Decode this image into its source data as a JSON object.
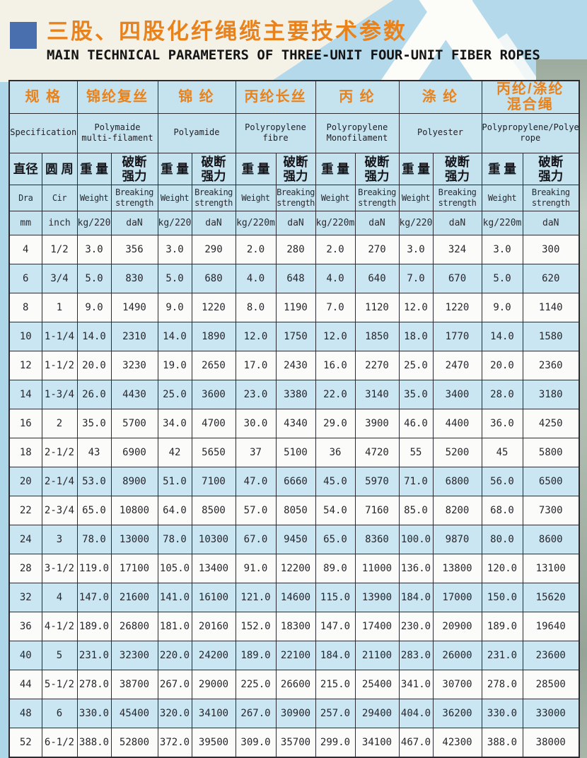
{
  "page": {
    "title_zh": "三股、四股化纤绳缆主要技术参数",
    "title_en": "MAIN TECHNICAL PARAMETERS OF THREE-UNIT FOUR-UNIT FIBER ROPES"
  },
  "colors": {
    "accent_orange": "#e8821c",
    "border_orange": "#e0762a",
    "border_dark": "#2b2b33",
    "header_cell_bg": "#c5e3ef",
    "shaded_row_bg": "#c9e6f2",
    "title_marker_blue": "#4a6fae",
    "page_background_blue": "#aed6e9"
  },
  "table": {
    "groups": [
      {
        "zh": "规 格",
        "en": "Specification"
      },
      {
        "zh": "锦纶复丝",
        "en": "Polymaide multi-filament"
      },
      {
        "zh": "锦 纶",
        "en": "Polyamide"
      },
      {
        "zh": "丙纶长丝",
        "en": "Polyropylene fibre"
      },
      {
        "zh": "丙 纶",
        "en": "Polyropylene Monofilament"
      },
      {
        "zh": "涤 纶",
        "en": "Polyester"
      },
      {
        "zh": "丙纶/涤纶混合绳",
        "en": "Polypropylene/Polyester/Mixed rope"
      }
    ],
    "sub": {
      "dia_zh": "直径",
      "cir_zh": "圆 周",
      "weight_zh": "重 量",
      "strength_zh": "破断强力",
      "dia_en": "Dra",
      "cir_en": "Cir",
      "weight_en": "Weight",
      "strength_en": "Breaking strength",
      "dia_unit": "mm",
      "cir_unit": "inch",
      "weight_unit": "kg/220m",
      "strength_unit": "daN"
    },
    "rows": [
      {
        "shaded": false,
        "cells": [
          "4",
          "1/2",
          "3.0",
          "356",
          "3.0",
          "290",
          "2.0",
          "280",
          "2.0",
          "270",
          "3.0",
          "324",
          "3.0",
          "300"
        ]
      },
      {
        "shaded": true,
        "cells": [
          "6",
          "3/4",
          "5.0",
          "830",
          "5.0",
          "680",
          "4.0",
          "648",
          "4.0",
          "640",
          "7.0",
          "670",
          "5.0",
          "620"
        ]
      },
      {
        "shaded": false,
        "cells": [
          "8",
          "1",
          "9.0",
          "1490",
          "9.0",
          "1220",
          "8.0",
          "1190",
          "7.0",
          "1120",
          "12.0",
          "1220",
          "9.0",
          "1140"
        ]
      },
      {
        "shaded": true,
        "cells": [
          "10",
          "1-1/4",
          "14.0",
          "2310",
          "14.0",
          "1890",
          "12.0",
          "1750",
          "12.0",
          "1850",
          "18.0",
          "1770",
          "14.0",
          "1580"
        ]
      },
      {
        "shaded": false,
        "cells": [
          "12",
          "1-1/2",
          "20.0",
          "3230",
          "19.0",
          "2650",
          "17.0",
          "2430",
          "16.0",
          "2270",
          "25.0",
          "2470",
          "20.0",
          "2360"
        ]
      },
      {
        "shaded": true,
        "cells": [
          "14",
          "1-3/4",
          "26.0",
          "4430",
          "25.0",
          "3600",
          "23.0",
          "3380",
          "22.0",
          "3140",
          "35.0",
          "3400",
          "28.0",
          "3180"
        ]
      },
      {
        "shaded": false,
        "cells": [
          "16",
          "2",
          "35.0",
          "5700",
          "34.0",
          "4700",
          "30.0",
          "4340",
          "29.0",
          "3900",
          "46.0",
          "4400",
          "36.0",
          "4250"
        ]
      },
      {
        "shaded": false,
        "cells": [
          "18",
          "2-1/2",
          "43",
          "6900",
          "42",
          "5650",
          "37",
          "5100",
          "36",
          "4720",
          "55",
          "5200",
          "45",
          "5800"
        ]
      },
      {
        "shaded": true,
        "cells": [
          "20",
          "2-1/4",
          "53.0",
          "8900",
          "51.0",
          "7100",
          "47.0",
          "6660",
          "45.0",
          "5970",
          "71.0",
          "6800",
          "56.0",
          "6500"
        ]
      },
      {
        "shaded": false,
        "cells": [
          "22",
          "2-3/4",
          "65.0",
          "10800",
          "64.0",
          "8500",
          "57.0",
          "8050",
          "54.0",
          "7160",
          "85.0",
          "8200",
          "68.0",
          "7300"
        ]
      },
      {
        "shaded": true,
        "cells": [
          "24",
          "3",
          "78.0",
          "13000",
          "78.0",
          "10300",
          "67.0",
          "9450",
          "65.0",
          "8360",
          "100.0",
          "9870",
          "80.0",
          "8600"
        ]
      },
      {
        "shaded": false,
        "cells": [
          "28",
          "3-1/2",
          "119.0",
          "17100",
          "105.0",
          "13400",
          "91.0",
          "12200",
          "89.0",
          "11000",
          "136.0",
          "13800",
          "120.0",
          "13100"
        ]
      },
      {
        "shaded": true,
        "cells": [
          "32",
          "4",
          "147.0",
          "21600",
          "141.0",
          "16100",
          "121.0",
          "14600",
          "115.0",
          "13900",
          "184.0",
          "17000",
          "150.0",
          "15620"
        ]
      },
      {
        "shaded": false,
        "cells": [
          "36",
          "4-1/2",
          "189.0",
          "26800",
          "181.0",
          "20160",
          "152.0",
          "18300",
          "147.0",
          "17400",
          "230.0",
          "20900",
          "189.0",
          "19640"
        ]
      },
      {
        "shaded": true,
        "cells": [
          "40",
          "5",
          "231.0",
          "32300",
          "220.0",
          "24200",
          "189.0",
          "22100",
          "184.0",
          "21100",
          "283.0",
          "26000",
          "231.0",
          "23600"
        ]
      },
      {
        "shaded": false,
        "cells": [
          "44",
          "5-1/2",
          "278.0",
          "38700",
          "267.0",
          "29000",
          "225.0",
          "26600",
          "215.0",
          "25400",
          "341.0",
          "30700",
          "278.0",
          "28500"
        ]
      },
      {
        "shaded": true,
        "cells": [
          "48",
          "6",
          "330.0",
          "45400",
          "320.0",
          "34100",
          "267.0",
          "30900",
          "257.0",
          "29400",
          "404.0",
          "36200",
          "330.0",
          "33000"
        ]
      },
      {
        "shaded": false,
        "cells": [
          "52",
          "6-1/2",
          "388.0",
          "52800",
          "372.0",
          "39500",
          "309.0",
          "35700",
          "299.0",
          "34100",
          "467.0",
          "42300",
          "388.0",
          "38000"
        ]
      }
    ]
  }
}
